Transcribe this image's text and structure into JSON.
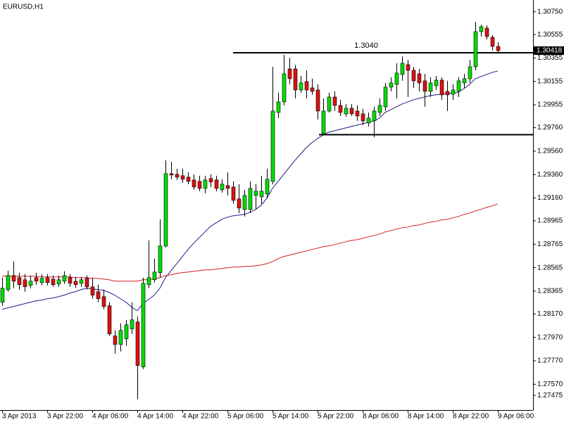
{
  "chart_data": {
    "type": "candlestick",
    "title": "EURUSD,H1",
    "categories": [
      "3 Apr 2013",
      null,
      null,
      null,
      null,
      null,
      null,
      null,
      "3 Apr 22:00",
      null,
      null,
      null,
      null,
      null,
      null,
      null,
      "4 Apr 06:00",
      null,
      null,
      null,
      null,
      null,
      null,
      null,
      "4 Apr 14:00",
      null,
      null,
      null,
      null,
      null,
      null,
      null,
      "4 Apr 22:00",
      null,
      null,
      null,
      null,
      null,
      null,
      null,
      "5 Apr 06:00",
      null,
      null,
      null,
      null,
      null,
      null,
      null,
      "5 Apr 14:00",
      null,
      null,
      null,
      null,
      null,
      null,
      null,
      "5 Apr 22:00",
      null,
      null,
      null,
      null,
      null,
      null,
      null,
      "8 Apr 06:00",
      null,
      null,
      null,
      null,
      null,
      null,
      null,
      "8 Apr 14:00",
      null,
      null,
      null,
      null,
      null,
      null,
      null,
      "8 Apr 22:00",
      null,
      null,
      null,
      null,
      null,
      null,
      null,
      "9 Apr 06:00"
    ],
    "open": [
      1.2827,
      1.28378,
      1.28498,
      1.2848,
      1.28462,
      1.28414,
      1.2848,
      1.28438,
      1.2848,
      1.28468,
      1.28426,
      1.2845,
      1.2848,
      1.2845,
      1.28432,
      1.28474,
      1.28402,
      1.2836,
      1.28318,
      1.2824,
      1.27982,
      1.2791,
      1.27958,
      1.28042,
      1.28102,
      1.27718,
      1.2842,
      1.28462,
      1.28522,
      1.2875,
      1.29368,
      1.29362,
      1.2935,
      1.29338,
      1.29314,
      1.29302,
      1.29242,
      1.29326,
      1.29314,
      1.2923,
      1.29266,
      1.29254,
      1.29152,
      1.29062,
      1.29062,
      1.29182,
      1.2917,
      1.29194,
      1.29302,
      1.2989,
      1.2998,
      1.30262,
      1.30262,
      1.30082,
      1.30154,
      1.301,
      1.30082,
      1.2971,
      1.29902,
      1.30022,
      1.2995,
      1.29878,
      1.29926,
      1.29902,
      1.29878,
      1.298,
      1.29818,
      1.2989,
      1.29938,
      1.30106,
      1.3013,
      1.30214,
      1.30298,
      1.3025,
      1.3022,
      1.3016,
      1.3007,
      1.30118,
      1.30166,
      1.3007,
      1.30046,
      1.3007,
      1.30142,
      1.30178,
      1.3028,
      1.3058,
      1.3061,
      1.30532,
      1.30454
    ],
    "high": [
      1.2848,
      1.2854,
      1.28618,
      1.28522,
      1.2851,
      1.28498,
      1.28522,
      1.2851,
      1.2851,
      1.28498,
      1.28498,
      1.28534,
      1.2851,
      1.28486,
      1.28486,
      1.28498,
      1.2848,
      1.2842,
      1.28378,
      1.2827,
      1.2803,
      1.2809,
      1.2812,
      1.2827,
      1.2815,
      1.2848,
      1.28798,
      1.28642,
      1.28978,
      1.29482,
      1.2947,
      1.2941,
      1.2941,
      1.2938,
      1.29362,
      1.2935,
      1.2935,
      1.29362,
      1.2935,
      1.2932,
      1.2938,
      1.29302,
      1.29278,
      1.2923,
      1.29302,
      1.29278,
      1.2935,
      1.2941,
      1.3028,
      1.30058,
      1.30382,
      1.30358,
      1.30298,
      1.30202,
      1.3025,
      1.30178,
      1.3013,
      1.3001,
      1.30058,
      1.3007,
      1.29998,
      1.29962,
      1.29962,
      1.2995,
      1.2992,
      1.2989,
      1.29938,
      1.3001,
      1.30142,
      1.3019,
      1.3031,
      1.3037,
      1.3034,
      1.3028,
      1.30262,
      1.3022,
      1.3019,
      1.30202,
      1.3019,
      1.3016,
      1.3013,
      1.3019,
      1.3022,
      1.3034,
      1.30664,
      1.3064,
      1.30634,
      1.3055,
      1.3049
    ],
    "low": [
      1.2824,
      1.2836,
      1.2839,
      1.28378,
      1.2836,
      1.2839,
      1.2842,
      1.28414,
      1.28414,
      1.28402,
      1.28402,
      1.28426,
      1.28402,
      1.2839,
      1.28402,
      1.28378,
      1.283,
      1.2827,
      1.2821,
      1.27982,
      1.27832,
      1.2785,
      1.27898,
      1.28,
      1.27442,
      1.277,
      1.2839,
      1.28438,
      1.2848,
      1.28738,
      1.2932,
      1.29314,
      1.2929,
      1.29278,
      1.2923,
      1.29218,
      1.292,
      1.29254,
      1.29218,
      1.29206,
      1.29182,
      1.2911,
      1.29032,
      1.29002,
      1.29032,
      1.29062,
      1.2911,
      1.29158,
      1.29278,
      1.29842,
      1.2995,
      1.3013,
      1.3001,
      1.30058,
      1.3001,
      1.3004,
      1.2983,
      1.29698,
      1.2989,
      1.29902,
      1.2986,
      1.29854,
      1.2986,
      1.29818,
      1.29782,
      1.2977,
      1.2968,
      1.2986,
      1.29902,
      1.3007,
      1.3001,
      1.3016,
      1.30022,
      1.301,
      1.3007,
      1.29938,
      1.30022,
      1.30082,
      1.29998,
      1.29902,
      1.29998,
      1.30022,
      1.301,
      1.30142,
      1.3025,
      1.30538,
      1.30514,
      1.30418,
      1.304
    ],
    "close": [
      1.2839,
      1.28498,
      1.2845,
      1.2842,
      1.28402,
      1.2845,
      1.2845,
      1.28474,
      1.28438,
      1.2842,
      1.28462,
      1.28498,
      1.28432,
      1.2842,
      1.28462,
      1.28402,
      1.2833,
      1.283,
      1.28234,
      1.28,
      1.2791,
      1.2803,
      1.28078,
      1.2812,
      1.2773,
      1.28432,
      1.2848,
      1.28528,
      1.2875,
      1.29368,
      1.29356,
      1.29338,
      1.2932,
      1.29302,
      1.29254,
      1.29242,
      1.29314,
      1.29296,
      1.29242,
      1.29278,
      1.29242,
      1.2914,
      1.29074,
      1.29182,
      1.29242,
      1.29218,
      1.29218,
      1.2932,
      1.29902,
      1.2998,
      1.3022,
      1.30178,
      1.30082,
      1.30142,
      1.30082,
      1.3007,
      1.29902,
      1.29902,
      1.30022,
      1.2995,
      1.2989,
      1.29926,
      1.29878,
      1.2986,
      1.29818,
      1.29842,
      1.29902,
      1.2995,
      1.30106,
      1.30142,
      1.30226,
      1.3031,
      1.3025,
      1.3016,
      1.30142,
      1.3007,
      1.30142,
      1.30166,
      1.3004,
      1.3004,
      1.30082,
      1.3016,
      1.30178,
      1.3028,
      1.3058,
      1.30622,
      1.30538,
      1.30454,
      1.30418
    ],
    "up_color": "#00dd00",
    "down_color": "#dd1111",
    "lines": [
      {
        "color": "#1c1c8a",
        "values": [
          1.2821,
          1.28222,
          1.28234,
          1.28246,
          1.28258,
          1.2827,
          1.28282,
          1.28288,
          1.283,
          1.28306,
          1.28318,
          1.2833,
          1.28348,
          1.2836,
          1.28378,
          1.2839,
          1.28384,
          1.28378,
          1.28372,
          1.28354,
          1.2833,
          1.283,
          1.2827,
          1.28228,
          1.28198,
          1.28258,
          1.28294,
          1.2833,
          1.2839,
          1.2848,
          1.2854,
          1.286,
          1.2866,
          1.2872,
          1.28774,
          1.28822,
          1.2887,
          1.28918,
          1.28948,
          1.28978,
          1.28996,
          1.29008,
          1.29014,
          1.2902,
          1.29038,
          1.29062,
          1.29098,
          1.29158,
          1.29242,
          1.29302,
          1.29362,
          1.29422,
          1.29482,
          1.29536,
          1.2959,
          1.29632,
          1.29668,
          1.29698,
          1.29722,
          1.29734,
          1.29746,
          1.29758,
          1.2977,
          1.29782,
          1.29794,
          1.29806,
          1.29818,
          1.29842,
          1.2989,
          1.29914,
          1.29938,
          1.29962,
          1.2998,
          1.29998,
          1.3001,
          1.30022,
          1.30034,
          1.3004,
          1.30046,
          1.30052,
          1.30052,
          1.30064,
          1.30094,
          1.3013,
          1.30178,
          1.30196,
          1.30214,
          1.30232,
          1.30244
        ]
      },
      {
        "color": "#d41c1c",
        "values": [
          1.28492,
          1.28492,
          1.28492,
          1.28492,
          1.28492,
          1.28492,
          1.28492,
          1.28486,
          1.28486,
          1.28486,
          1.28486,
          1.28486,
          1.28486,
          1.2848,
          1.2848,
          1.2848,
          1.28474,
          1.28474,
          1.28468,
          1.28462,
          1.2845,
          1.2845,
          1.2845,
          1.2845,
          1.2845,
          1.28462,
          1.28462,
          1.28468,
          1.2848,
          1.28498,
          1.28504,
          1.28516,
          1.28522,
          1.28528,
          1.28534,
          1.2854,
          1.28546,
          1.28546,
          1.28552,
          1.28558,
          1.28564,
          1.2857,
          1.2857,
          1.28576,
          1.28576,
          1.28582,
          1.28588,
          1.286,
          1.28618,
          1.28642,
          1.2866,
          1.28672,
          1.28684,
          1.28696,
          1.28708,
          1.2872,
          1.28732,
          1.28744,
          1.2875,
          1.28762,
          1.28774,
          1.28786,
          1.28798,
          1.28804,
          1.28816,
          1.28828,
          1.2884,
          1.28852,
          1.2887,
          1.28882,
          1.28894,
          1.28906,
          1.28912,
          1.28924,
          1.2893,
          1.28942,
          1.28954,
          1.2896,
          1.28972,
          1.28978,
          1.2899,
          1.29002,
          1.2902,
          1.29032,
          1.2905,
          1.29062,
          1.2908,
          1.29092,
          1.2911
        ]
      }
    ],
    "levels": [
      {
        "value": 1.304,
        "label": "1.3040"
      },
      {
        "value": 1.297
      }
    ],
    "last_price": {
      "value": 1.30418,
      "label": "1.30418"
    },
    "ylim": [
      1.2735,
      1.3085
    ],
    "yticks": [
      {
        "value": 1.3075,
        "label": "1.30750"
      },
      1.30555,
      1.30355,
      1.30155,
      1.29955,
      {
        "value": 1.2976,
        "label": "1.29760"
      },
      {
        "value": 1.2956,
        "label": "1.29560"
      },
      {
        "value": 1.2936,
        "label": "1.29360"
      },
      {
        "value": 1.2916,
        "label": "1.29160"
      },
      1.28965,
      1.28765,
      1.28565,
      1.28365,
      {
        "value": 1.2817,
        "label": "1.28170"
      },
      {
        "value": 1.2797,
        "label": "1.27970"
      },
      {
        "value": 1.2777,
        "label": "1.27770"
      },
      {
        "value": 1.2757,
        "label": "1.27570"
      },
      1.27475
    ]
  }
}
